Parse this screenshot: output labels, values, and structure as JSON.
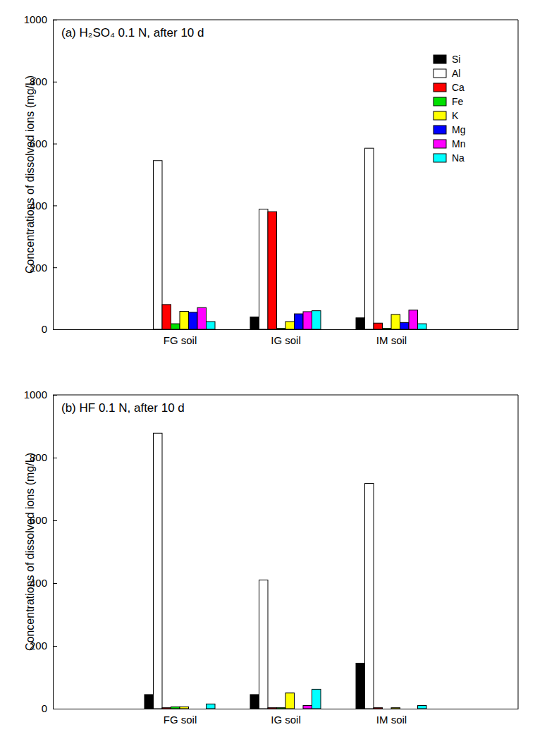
{
  "chart_data": [
    {
      "type": "bar",
      "title": "(a) H₂SO₄ 0.1 N, after 10 d",
      "y_label": "Concentrations of dissolved ions (mg/L)",
      "categories": [
        "FG soil",
        "IG soil",
        "IM soil"
      ],
      "series": [
        {
          "name": "Si",
          "color": "#000000",
          "values": [
            0,
            40,
            37
          ]
        },
        {
          "name": "Al",
          "color": "#ffffff",
          "values": [
            545,
            388,
            585
          ]
        },
        {
          "name": "Ca",
          "color": "#ff0000",
          "values": [
            80,
            380,
            20
          ]
        },
        {
          "name": "Fe",
          "color": "#00e000",
          "values": [
            18,
            3,
            3
          ]
        },
        {
          "name": "K",
          "color": "#ffff00",
          "values": [
            58,
            25,
            48
          ]
        },
        {
          "name": "Mg",
          "color": "#0000ff",
          "values": [
            55,
            50,
            22
          ]
        },
        {
          "name": "Mn",
          "color": "#ff00ff",
          "values": [
            70,
            57,
            62
          ]
        },
        {
          "name": "Na",
          "color": "#00ffff",
          "values": [
            25,
            60,
            18
          ]
        }
      ],
      "ylim": [
        0,
        1000
      ],
      "yticks": [
        0,
        200,
        400,
        600,
        800,
        1000
      ],
      "legend": "upper right"
    },
    {
      "type": "bar",
      "title": "(b) HF 0.1 N, after 10 d",
      "y_label": "Concentrations of dissolved ions (mg/L)",
      "categories": [
        "FG soil",
        "IG soil",
        "IM soil"
      ],
      "series": [
        {
          "name": "Si",
          "color": "#000000",
          "values": [
            45,
            45,
            145
          ]
        },
        {
          "name": "Al",
          "color": "#ffffff",
          "values": [
            878,
            410,
            718
          ]
        },
        {
          "name": "Ca",
          "color": "#ff0000",
          "values": [
            3,
            3,
            3
          ]
        },
        {
          "name": "Fe",
          "color": "#00e000",
          "values": [
            6,
            3,
            0
          ]
        },
        {
          "name": "K",
          "color": "#ffff00",
          "values": [
            6,
            50,
            3
          ]
        },
        {
          "name": "Mg",
          "color": "#0000ff",
          "values": [
            0,
            0,
            0
          ]
        },
        {
          "name": "Mn",
          "color": "#ff00ff",
          "values": [
            0,
            10,
            0
          ]
        },
        {
          "name": "Na",
          "color": "#00ffff",
          "values": [
            15,
            62,
            10
          ]
        }
      ],
      "ylim": [
        0,
        1000
      ],
      "yticks": [
        0,
        200,
        400,
        600,
        800,
        1000
      ]
    }
  ]
}
